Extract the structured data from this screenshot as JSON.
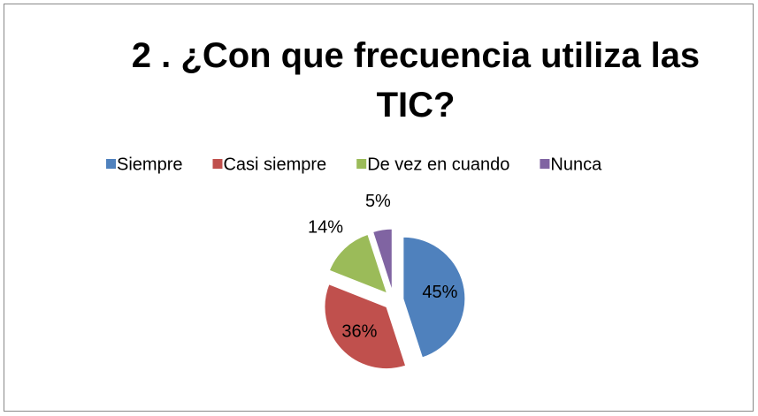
{
  "chart_data": {
    "type": "pie",
    "title": "2 . ¿Con que frecuencia utiliza las TIC?",
    "categories": [
      "Siempre",
      "Casi siempre",
      "De vez en cuando",
      "Nunca"
    ],
    "values": [
      45,
      36,
      14,
      5
    ],
    "value_labels": [
      "45%",
      "36%",
      "14%",
      "5%"
    ],
    "colors": [
      "#4f81bd",
      "#c0504d",
      "#9bbb59",
      "#8064a2"
    ],
    "legend": "top"
  }
}
